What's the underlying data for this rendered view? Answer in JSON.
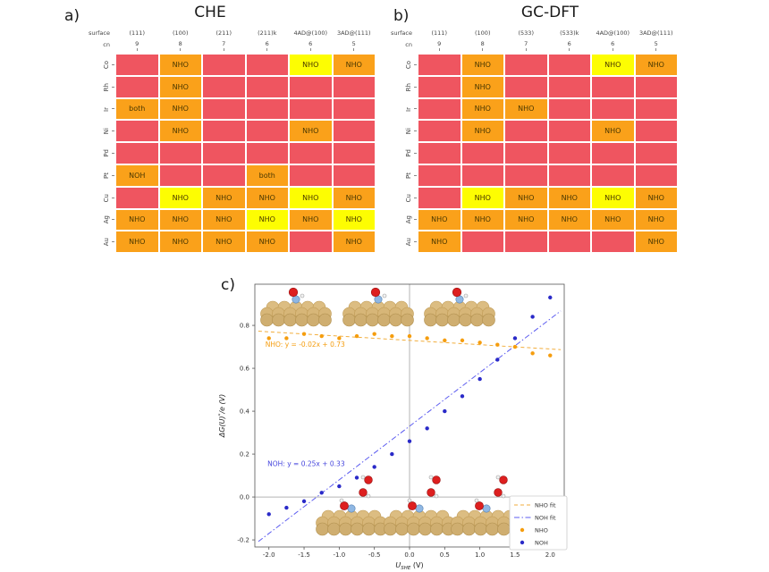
{
  "colors": {
    "red": "#ef5560",
    "orange": "#faa11a",
    "yellow": "#fdfd02",
    "chart_orange": "#f59d0e",
    "chart_orange_fit": "#f2ae3d",
    "chart_blue": "#2a2ac8",
    "chart_blue_fit": "#5c5cf0"
  },
  "panel_a": {
    "label": "a)",
    "title": "CHE",
    "surface_label": "surface",
    "cn_label": "cn",
    "columns": [
      "(111)",
      "(100)",
      "(211)",
      "(211)k",
      "4AD@(100)",
      "3AD@(111)"
    ],
    "cn_values": [
      "9",
      "8",
      "7",
      "6",
      "6",
      "5"
    ],
    "rows": [
      "Co",
      "Rh",
      "Ir",
      "Ni",
      "Pd",
      "Pt",
      "Cu",
      "Ag",
      "Au"
    ],
    "cells": [
      [
        "red",
        "orange:NHO",
        "red",
        "red",
        "yellow:NHO",
        "orange:NHO"
      ],
      [
        "red",
        "orange:NHO",
        "red",
        "red",
        "red",
        "red"
      ],
      [
        "orange:both",
        "orange:NHO",
        "red",
        "red",
        "red",
        "red"
      ],
      [
        "red",
        "orange:NHO",
        "red",
        "red",
        "orange:NHO",
        "red"
      ],
      [
        "red",
        "red",
        "red",
        "red",
        "red",
        "red"
      ],
      [
        "orange:NOH",
        "red",
        "red",
        "orange:both",
        "red",
        "red"
      ],
      [
        "red",
        "yellow:NHO",
        "orange:NHO",
        "orange:NHO",
        "yellow:NHO",
        "orange:NHO"
      ],
      [
        "orange:NHO",
        "orange:NHO",
        "orange:NHO",
        "yellow:NHO",
        "orange:NHO",
        "yellow:NHO"
      ],
      [
        "orange:NHO",
        "orange:NHO",
        "orange:NHO",
        "orange:NHO",
        "red",
        "orange:NHO"
      ]
    ]
  },
  "panel_b": {
    "label": "b)",
    "title": "GC-DFT",
    "surface_label": "surface",
    "cn_label": "cn",
    "columns": [
      "(111)",
      "(100)",
      "(533)",
      "(533)k",
      "4AD@(100)",
      "3AD@(111)"
    ],
    "cn_values": [
      "9",
      "8",
      "7",
      "6",
      "6",
      "5"
    ],
    "rows": [
      "Co",
      "Rh",
      "Ir",
      "Ni",
      "Pd",
      "Pt",
      "Cu",
      "Ag",
      "Au"
    ],
    "cells": [
      [
        "red",
        "orange:NHO",
        "red",
        "red",
        "yellow:NHO",
        "orange:NHO"
      ],
      [
        "red",
        "orange:NHO",
        "red",
        "red",
        "red",
        "red"
      ],
      [
        "red",
        "orange:NHO",
        "orange:NHO",
        "red",
        "red",
        "red"
      ],
      [
        "red",
        "orange:NHO",
        "red",
        "red",
        "orange:NHO",
        "red"
      ],
      [
        "red",
        "red",
        "red",
        "red",
        "red",
        "red"
      ],
      [
        "red",
        "red",
        "red",
        "red",
        "red",
        "red"
      ],
      [
        "red",
        "yellow:NHO",
        "orange:NHO",
        "orange:NHO",
        "yellow:NHO",
        "orange:NHO"
      ],
      [
        "orange:NHO",
        "orange:NHO",
        "orange:NHO",
        "orange:NHO",
        "orange:NHO",
        "orange:NHO"
      ],
      [
        "orange:NHO",
        "red",
        "red",
        "red",
        "red",
        "orange:NHO"
      ]
    ]
  },
  "panel_c": {
    "label": "c)",
    "chart_data": {
      "type": "scatter",
      "xlabel": "U_SHE (V)",
      "xlabel_parts": {
        "main": "U",
        "sub": "SHE",
        "rest": " (V)"
      },
      "ylabel": "ΔG(U)*/e (V)",
      "ylabel_parts": {
        "pre": "ΔG(U)",
        "sup": "*",
        "post": "/e (V)"
      },
      "xlim": [
        -2.2,
        2.2
      ],
      "ylim": [
        -0.233,
        0.992
      ],
      "xticks": [
        -2.0,
        -1.5,
        -1.0,
        -0.5,
        0.0,
        0.5,
        1.0,
        1.5,
        2.0
      ],
      "yticks": [
        -0.2,
        0.0,
        0.2,
        0.4,
        0.6,
        0.8
      ],
      "crosshair_x": 0.0,
      "crosshair_y": 0.0,
      "x": [
        -2.0,
        -1.75,
        -1.5,
        -1.25,
        -1.0,
        -0.75,
        -0.5,
        -0.25,
        0.0,
        0.25,
        0.5,
        0.75,
        1.0,
        1.25,
        1.5,
        1.75,
        2.0
      ],
      "series": [
        {
          "name": "NHO",
          "color": "#f59d0e",
          "y": [
            0.74,
            0.74,
            0.76,
            0.75,
            0.74,
            0.75,
            0.76,
            0.75,
            0.75,
            0.74,
            0.73,
            0.73,
            0.72,
            0.71,
            0.7,
            0.67,
            0.66
          ]
        },
        {
          "name": "NOH",
          "color": "#2a2ac8",
          "y": [
            -0.08,
            -0.05,
            -0.02,
            0.02,
            0.05,
            0.09,
            0.14,
            0.2,
            0.26,
            0.32,
            0.4,
            0.47,
            0.55,
            0.64,
            0.74,
            0.84,
            0.93
          ]
        }
      ],
      "fits": [
        {
          "name": "NHO fit",
          "color": "#f2ae3d",
          "slope": -0.02,
          "intercept": 0.73,
          "dash": "4 3"
        },
        {
          "name": "NOH fit",
          "color": "#5c5cf0",
          "slope": 0.25,
          "intercept": 0.33,
          "dash": "6 2.5 1.5 2.5"
        }
      ],
      "annotations": [
        {
          "text": "NHO: y = -0.02x + 0.73",
          "color": "#f59d0e",
          "x": -2.05,
          "y": 0.7
        },
        {
          "text": "NOH: y = 0.25x + 0.33",
          "color": "#4545dd",
          "x": -2.02,
          "y": 0.145
        }
      ],
      "legend": [
        {
          "label": "NHO fit",
          "type": "dash",
          "color": "#f2ae3d",
          "dash": "4 3"
        },
        {
          "label": "NOH fit",
          "type": "dash",
          "color": "#5c5cf0",
          "dash": "6 2.5 1.5 2.5"
        },
        {
          "label": "NHO",
          "type": "dot",
          "color": "#f59d0e"
        },
        {
          "label": "NOH",
          "type": "dot",
          "color": "#2a2ac8"
        }
      ],
      "legend_position": "lower right",
      "grid": false
    }
  }
}
